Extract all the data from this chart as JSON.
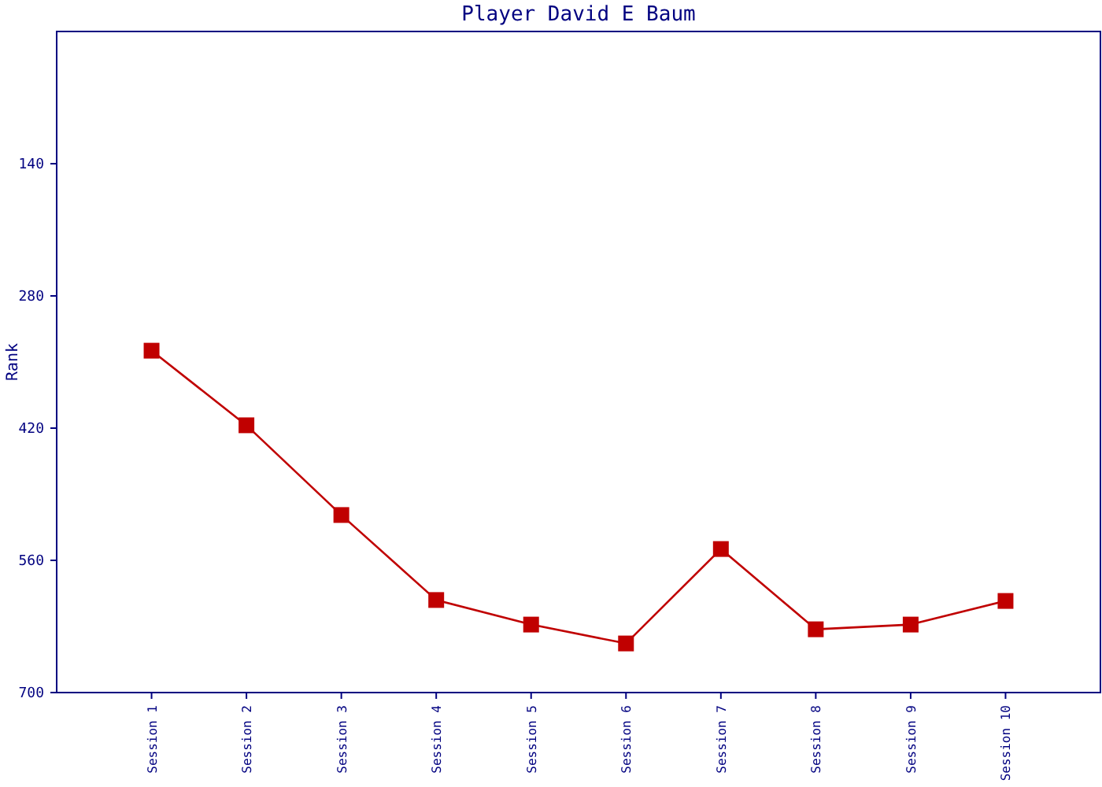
{
  "chart_data": {
    "type": "line",
    "title": "Player David E Baum",
    "ylabel": "Rank",
    "categories": [
      "Session 1",
      "Session 2",
      "Session 3",
      "Session 4",
      "Session 5",
      "Session 6",
      "Session 7",
      "Session 8",
      "Session 9",
      "Session 10"
    ],
    "series": [
      {
        "color": "#c00000",
        "values": [
          338,
          417,
          512,
          602,
          628,
          648,
          548,
          633,
          628,
          603
        ]
      }
    ],
    "ylim": [
      700,
      0
    ],
    "yticks": [
      140,
      280,
      420,
      560,
      700
    ],
    "grid": false,
    "marker": "square",
    "line_style": "solid"
  }
}
